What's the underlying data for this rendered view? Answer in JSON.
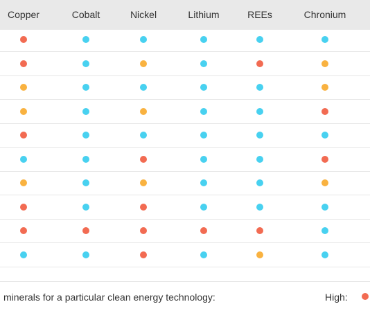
{
  "colors": {
    "high": "#f26b52",
    "moderate": "#f9b240",
    "low": "#48d1f0",
    "header_bg": "#e9e9e9"
  },
  "chart_data": {
    "type": "table",
    "columns": [
      "Copper",
      "Cobalt",
      "Nickel",
      "Lithium",
      "REEs",
      "Chronium"
    ],
    "rows": [
      [
        "high",
        "low",
        "low",
        "low",
        "low",
        "low"
      ],
      [
        "high",
        "low",
        "moderate",
        "low",
        "high",
        "moderate"
      ],
      [
        "moderate",
        "low",
        "low",
        "low",
        "low",
        "moderate"
      ],
      [
        "moderate",
        "low",
        "moderate",
        "low",
        "low",
        "high"
      ],
      [
        "high",
        "low",
        "low",
        "low",
        "low",
        "low"
      ],
      [
        "low",
        "low",
        "high",
        "low",
        "low",
        "high"
      ],
      [
        "moderate",
        "low",
        "moderate",
        "low",
        "low",
        "moderate"
      ],
      [
        "high",
        "low",
        "high",
        "low",
        "low",
        "low"
      ],
      [
        "high",
        "high",
        "high",
        "high",
        "high",
        "low"
      ],
      [
        "low",
        "low",
        "high",
        "low",
        "moderate",
        "low"
      ]
    ]
  },
  "footer": {
    "caption": "minerals for a particular clean energy technology:",
    "legend_high_label": "High:"
  }
}
